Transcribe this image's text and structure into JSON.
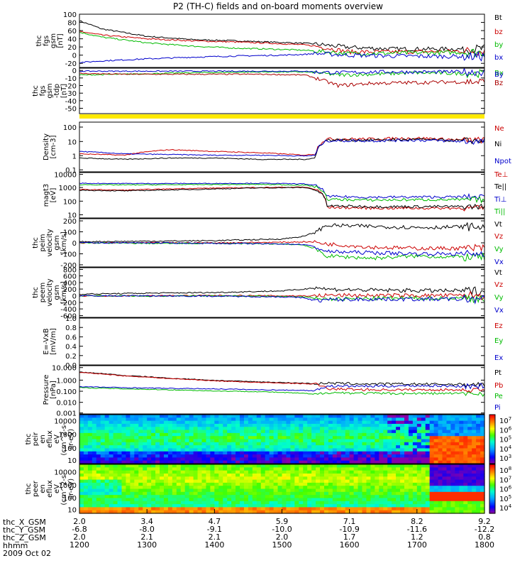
{
  "title": "P2 (TH-C) fields and on-board moments overview",
  "chart_data": [
    {
      "id": "p1",
      "type": "line",
      "ylabel": [
        "thc",
        "fgs",
        "gsm",
        "[nT]"
      ],
      "yticks": [
        "100",
        "80",
        "60",
        "40",
        "20",
        "0",
        "-20"
      ],
      "ylim": [
        -30,
        100
      ],
      "series": [
        {
          "name": "Bt",
          "color": "#000000",
          "x": [
            0,
            0.1,
            0.3,
            0.5,
            0.7,
            0.9,
            1.0,
            1.05,
            1.2,
            1.4,
            1.6,
            1.7
          ],
          "y": [
            84,
            64,
            46,
            38,
            35,
            31,
            29,
            27,
            19,
            15,
            15,
            15
          ]
        },
        {
          "name": "bz",
          "color": "#cc0000",
          "x": [
            0,
            0.1,
            0.3,
            0.5,
            0.7,
            0.9,
            1.0,
            1.05,
            1.2,
            1.4,
            1.6,
            1.7
          ],
          "y": [
            58,
            49,
            40,
            35,
            32,
            28,
            25,
            22,
            8,
            8,
            9,
            10
          ]
        },
        {
          "name": "by",
          "color": "#00bb00",
          "x": [
            0,
            0.1,
            0.3,
            0.5,
            0.7,
            0.9,
            1.0,
            1.05,
            1.2,
            1.4,
            1.6,
            1.7
          ],
          "y": [
            56,
            44,
            30,
            22,
            17,
            14,
            12,
            10,
            4,
            5,
            6,
            7
          ]
        },
        {
          "name": "bx",
          "color": "#0000cc",
          "x": [
            0,
            0.1,
            0.3,
            0.5,
            0.7,
            0.9,
            1.0,
            1.05,
            1.2,
            1.4,
            1.6,
            1.7
          ],
          "y": [
            -18,
            -14,
            -9,
            -5,
            -2,
            0,
            2,
            4,
            0,
            -2,
            -3,
            -3
          ]
        }
      ]
    },
    {
      "id": "p2",
      "type": "line",
      "ylabel": [
        "thc",
        "fgs",
        "gsm",
        "-tdp",
        "[nT]"
      ],
      "yticks": [
        "0",
        "-10",
        "-20",
        "-30",
        "-40",
        "-50"
      ],
      "ylim": [
        -57,
        3
      ],
      "series": [
        {
          "name": "Bx",
          "color": "#00bb00",
          "x": [
            0,
            0.2,
            0.5,
            0.8,
            1.0,
            1.05,
            1.15,
            1.3,
            1.5,
            1.7
          ],
          "y": [
            -6,
            -5,
            -3,
            -2,
            -2,
            -3,
            -6,
            -5,
            -3,
            -4
          ]
        },
        {
          "name": "By",
          "color": "#0000cc",
          "x": [
            0,
            0.2,
            0.5,
            0.8,
            1.0,
            1.05,
            1.15,
            1.3,
            1.5,
            1.7
          ],
          "y": [
            -1,
            -1,
            -1,
            -1,
            -1,
            -2,
            -3,
            -2,
            -2,
            -2
          ]
        },
        {
          "name": "Bz",
          "color": "#aa0000",
          "x": [
            0,
            0.2,
            0.5,
            0.8,
            1.0,
            1.05,
            1.15,
            1.3,
            1.5,
            1.7
          ],
          "y": [
            -4,
            -5,
            -5,
            -5,
            -6,
            -10,
            -20,
            -17,
            -16,
            -15
          ]
        }
      ]
    },
    {
      "id": "p3",
      "type": "line",
      "log": true,
      "ylabel": [
        "Density",
        "[cm-3]"
      ],
      "yticks": [
        "100",
        "10",
        "1",
        "0.1"
      ],
      "ylim": [
        0.05,
        200
      ],
      "series": [
        {
          "name": "Ne",
          "color": "#cc0000",
          "x": [
            0,
            0.2,
            0.4,
            0.6,
            0.8,
            1.0,
            1.05,
            1.1,
            1.3,
            1.5,
            1.7
          ],
          "y": [
            1.0,
            0.8,
            2.0,
            1.5,
            1.2,
            0.8,
            1.0,
            12,
            12,
            14,
            10
          ]
        },
        {
          "name": "Ni",
          "color": "#000000",
          "x": [
            0,
            0.2,
            0.4,
            0.6,
            0.8,
            1.0,
            1.05,
            1.1,
            1.3,
            1.5,
            1.7
          ],
          "y": [
            0.5,
            0.4,
            0.5,
            0.5,
            0.4,
            0.4,
            0.5,
            10,
            10,
            11,
            9
          ]
        },
        {
          "name": "Npot",
          "color": "#0000cc",
          "x": [
            0,
            0.2,
            0.4,
            0.6,
            0.8,
            1.0,
            1.05,
            1.1,
            1.3,
            1.5,
            1.7
          ],
          "y": [
            1.5,
            1.0,
            0.9,
            0.8,
            0.8,
            0.7,
            0.8,
            9,
            9,
            10,
            8
          ]
        }
      ]
    },
    {
      "id": "p4",
      "type": "line",
      "log": true,
      "ylabel": [
        "magt3",
        "[eV]"
      ],
      "yticks": [
        "10000",
        "1000",
        "100",
        "10"
      ],
      "ylim": [
        5,
        20000
      ],
      "series": [
        {
          "name": "Te⊥",
          "color": "#cc0000",
          "x": [
            0,
            0.2,
            0.5,
            0.8,
            1.0,
            1.05,
            1.1,
            1.3,
            1.5,
            1.7
          ],
          "y": [
            900,
            800,
            1100,
            1300,
            1400,
            900,
            35,
            30,
            30,
            30
          ]
        },
        {
          "name": "Te||",
          "color": "#000000",
          "x": [
            0,
            0.2,
            0.5,
            0.8,
            1.0,
            1.05,
            1.1,
            1.3,
            1.5,
            1.7
          ],
          "y": [
            800,
            700,
            900,
            1200,
            1300,
            800,
            45,
            40,
            40,
            40
          ]
        },
        {
          "name": "Ti⊥",
          "color": "#0000cc",
          "x": [
            0,
            0.2,
            0.5,
            0.8,
            1.0,
            1.05,
            1.1,
            1.3,
            1.5,
            1.7
          ],
          "y": [
            2800,
            2700,
            2700,
            2800,
            2500,
            1800,
            250,
            220,
            230,
            230
          ]
        },
        {
          "name": "Ti||",
          "color": "#00bb00",
          "x": [
            0,
            0.2,
            0.5,
            0.8,
            1.0,
            1.05,
            1.1,
            1.3,
            1.5,
            1.7
          ],
          "y": [
            2200,
            2100,
            2200,
            2300,
            2000,
            1500,
            150,
            130,
            140,
            140
          ]
        }
      ]
    },
    {
      "id": "p5",
      "type": "line",
      "ylabel": [
        "thc",
        "peim",
        "velocity",
        "gsm",
        "[km/s]"
      ],
      "yticks": [
        "200",
        "100",
        "0",
        "-100",
        "-200"
      ],
      "ylim": [
        -220,
        220
      ],
      "series": [
        {
          "name": "Vt",
          "color": "#000000",
          "x": [
            0,
            0.3,
            0.6,
            0.9,
            1.0,
            1.05,
            1.1,
            1.3,
            1.5,
            1.7
          ],
          "y": [
            10,
            15,
            20,
            35,
            60,
            100,
            160,
            150,
            140,
            145
          ]
        },
        {
          "name": "Vz",
          "color": "#cc0000",
          "x": [
            0,
            0.3,
            0.6,
            0.9,
            1.0,
            1.05,
            1.1,
            1.3,
            1.5,
            1.7
          ],
          "y": [
            0,
            0,
            0,
            5,
            10,
            5,
            -10,
            -40,
            -50,
            -50
          ]
        },
        {
          "name": "Vy",
          "color": "#00bb00",
          "x": [
            0,
            0.3,
            0.6,
            0.9,
            1.0,
            1.05,
            1.1,
            1.3,
            1.5,
            1.7
          ],
          "y": [
            0,
            -5,
            -5,
            -10,
            -20,
            -60,
            -120,
            -140,
            -120,
            -130
          ]
        },
        {
          "name": "Vx",
          "color": "#0000cc",
          "x": [
            0,
            0.3,
            0.6,
            0.9,
            1.0,
            1.05,
            1.1,
            1.3,
            1.5,
            1.7
          ],
          "y": [
            0,
            0,
            -5,
            -10,
            -15,
            -40,
            -80,
            -90,
            -100,
            -100
          ]
        }
      ]
    },
    {
      "id": "p6",
      "type": "line",
      "ylabel": [
        "thc",
        "peem",
        "velocity",
        "gsm",
        "[km/s]"
      ],
      "yticks": [
        "800",
        "600",
        "400",
        "200",
        "0",
        "-200",
        "-400",
        "-600"
      ],
      "ylim": [
        -650,
        850
      ],
      "series": [
        {
          "name": "Vt",
          "color": "#000000",
          "x": [
            0,
            0.3,
            0.6,
            0.9,
            1.0,
            1.05,
            1.1,
            1.3,
            1.5,
            1.7
          ],
          "y": [
            50,
            80,
            100,
            150,
            200,
            260,
            200,
            170,
            160,
            150
          ]
        },
        {
          "name": "Vz",
          "color": "#cc0000",
          "x": [
            0,
            0.3,
            0.6,
            0.9,
            1.0,
            1.05,
            1.1,
            1.3,
            1.5,
            1.7
          ],
          "y": [
            0,
            0,
            10,
            0,
            0,
            0,
            20,
            10,
            10,
            10
          ]
        },
        {
          "name": "Vy",
          "color": "#00bb00",
          "x": [
            0,
            0.3,
            0.6,
            0.9,
            1.0,
            1.05,
            1.1,
            1.3,
            1.5,
            1.7
          ],
          "y": [
            0,
            -10,
            0,
            -20,
            -40,
            -60,
            -100,
            -80,
            -70,
            -70
          ]
        },
        {
          "name": "Vx",
          "color": "#0000cc",
          "x": [
            0,
            0.3,
            0.6,
            0.9,
            1.0,
            1.05,
            1.1,
            1.3,
            1.5,
            1.7
          ],
          "y": [
            0,
            0,
            -10,
            -30,
            -60,
            -150,
            -120,
            -100,
            -100,
            -100
          ]
        }
      ]
    },
    {
      "id": "p7",
      "type": "line",
      "ylabel": [
        "E=-VxB",
        "[mV/m]"
      ],
      "yticks": [
        "1.0",
        "0.8",
        "0.6",
        "0.4",
        "0.2",
        "0.0"
      ],
      "ylim": [
        0,
        1
      ],
      "series": [
        {
          "name": "Ez",
          "color": "#cc0000",
          "x": [],
          "y": []
        },
        {
          "name": "Ey",
          "color": "#00bb00",
          "x": [],
          "y": []
        },
        {
          "name": "Ex",
          "color": "#0000cc",
          "x": [],
          "y": []
        }
      ]
    },
    {
      "id": "p8",
      "type": "line",
      "log": true,
      "ylabel": [
        "Pressure",
        "[nPa]"
      ],
      "yticks": [
        "10.000",
        "1.000",
        "0.100",
        "0.010",
        "0.001"
      ],
      "ylim": [
        0.001,
        10
      ],
      "series": [
        {
          "name": "Pt",
          "color": "#000000",
          "x": [
            0,
            0.2,
            0.4,
            0.6,
            0.8,
            1.0,
            1.05,
            1.1,
            1.3,
            1.5,
            1.7
          ],
          "y": [
            2.9,
            1.5,
            0.9,
            0.6,
            0.45,
            0.35,
            0.32,
            0.35,
            0.3,
            0.3,
            0.28
          ]
        },
        {
          "name": "Pb",
          "color": "#cc0000",
          "x": [
            0,
            0.2,
            0.4,
            0.6,
            0.8,
            1.0,
            1.05,
            1.1,
            1.3,
            1.5,
            1.7
          ],
          "y": [
            2.7,
            1.4,
            0.85,
            0.55,
            0.4,
            0.32,
            0.3,
            0.12,
            0.1,
            0.1,
            0.1
          ]
        },
        {
          "name": "Pe",
          "color": "#00bb00",
          "x": [
            0,
            0.2,
            0.4,
            0.6,
            0.8,
            1.0,
            1.05,
            1.1,
            1.3,
            1.5,
            1.7
          ],
          "y": [
            0.15,
            0.12,
            0.1,
            0.08,
            0.07,
            0.05,
            0.04,
            0.06,
            0.05,
            0.05,
            0.05
          ]
        },
        {
          "name": "Pi",
          "color": "#0000cc",
          "x": [
            0,
            0.2,
            0.4,
            0.6,
            0.8,
            1.0,
            1.05,
            1.1,
            1.3,
            1.5,
            1.7
          ],
          "y": [
            0.18,
            0.15,
            0.13,
            0.12,
            0.1,
            0.09,
            0.08,
            0.2,
            0.2,
            0.22,
            0.2
          ]
        }
      ]
    },
    {
      "id": "p9",
      "type": "heatmap",
      "ylabel": [
        "thc",
        "peir",
        "en",
        "eflux",
        "eV",
        "(cm^2-s-",
        "sr-eV)"
      ],
      "yticks": [
        "10000",
        "1000",
        "100",
        "10"
      ],
      "colorbar_ticks": [
        "10^7",
        "10^6",
        "10^5",
        "10^4",
        "10^3"
      ]
    },
    {
      "id": "p10",
      "type": "heatmap",
      "ylabel": [
        "thc",
        "peer",
        "en",
        "eflux",
        "eV",
        "(cm^2-s-",
        "sr-eV)"
      ],
      "yticks": [
        "10000",
        "1000",
        "100",
        "10"
      ],
      "colorbar_ticks": [
        "10^8",
        "10^7",
        "10^6",
        "10^5",
        "10^4"
      ]
    }
  ],
  "x_axis": {
    "rows": [
      {
        "label": "thc_X_GSM",
        "values": [
          "2.0",
          "3.4",
          "4.7",
          "5.9",
          "7.1",
          "8.2",
          "9.2"
        ]
      },
      {
        "label": "thc_Y_GSM",
        "values": [
          "-6.8",
          "-8.0",
          "-9.1",
          "-10.0",
          "-10.9",
          "-11.6",
          "-12.2"
        ]
      },
      {
        "label": "thc_Z_GSM",
        "values": [
          "2.0",
          "2.1",
          "2.1",
          "2.0",
          "1.7",
          "1.2",
          "0.8"
        ]
      },
      {
        "label": "hhmm",
        "values": [
          "1200",
          "1300",
          "1400",
          "1500",
          "1600",
          "1700",
          "1800"
        ]
      }
    ],
    "date": "2009 Oct 02"
  }
}
